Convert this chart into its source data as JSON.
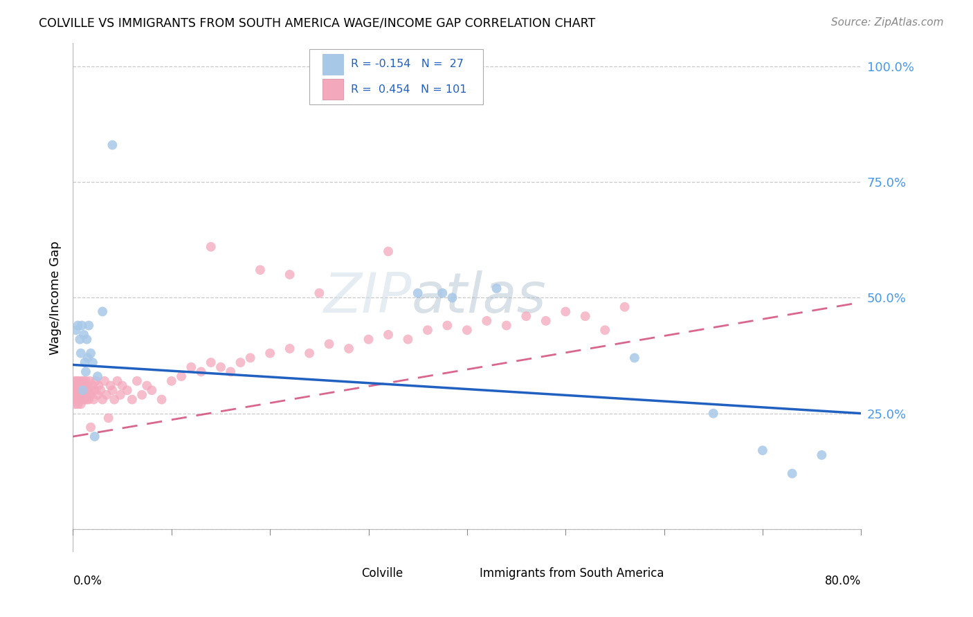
{
  "title": "COLVILLE VS IMMIGRANTS FROM SOUTH AMERICA WAGE/INCOME GAP CORRELATION CHART",
  "source": "Source: ZipAtlas.com",
  "ylabel": "Wage/Income Gap",
  "colville_color": "#a8c8e8",
  "immigrant_color": "#f4a8bc",
  "colville_line_color": "#2060c0",
  "immigrant_line_color": "#d04070",
  "ytick_vals": [
    0.0,
    0.25,
    0.5,
    0.75,
    1.0
  ],
  "ytick_labels": [
    "",
    "25.0%",
    "50.0%",
    "75.0%",
    "100.0%"
  ],
  "xlim": [
    0.0,
    0.8
  ],
  "ylim": [
    -0.05,
    1.05
  ],
  "colville_x": [
    0.003,
    0.005,
    0.007,
    0.008,
    0.009,
    0.01,
    0.011,
    0.012,
    0.013,
    0.014,
    0.015,
    0.016,
    0.018,
    0.02,
    0.022,
    0.025,
    0.03,
    0.04,
    0.35,
    0.375,
    0.385,
    0.43,
    0.57,
    0.65,
    0.7,
    0.73,
    0.76
  ],
  "colville_y": [
    0.43,
    0.44,
    0.41,
    0.38,
    0.44,
    0.3,
    0.42,
    0.36,
    0.34,
    0.41,
    0.37,
    0.44,
    0.38,
    0.36,
    0.2,
    0.33,
    0.47,
    0.83,
    0.51,
    0.51,
    0.5,
    0.52,
    0.37,
    0.25,
    0.17,
    0.12,
    0.16
  ],
  "immigrant_x": [
    0.001,
    0.001,
    0.002,
    0.002,
    0.002,
    0.003,
    0.003,
    0.003,
    0.004,
    0.004,
    0.004,
    0.005,
    0.005,
    0.005,
    0.006,
    0.006,
    0.007,
    0.007,
    0.007,
    0.008,
    0.008,
    0.008,
    0.009,
    0.009,
    0.009,
    0.01,
    0.01,
    0.01,
    0.011,
    0.011,
    0.011,
    0.012,
    0.012,
    0.013,
    0.013,
    0.014,
    0.014,
    0.015,
    0.015,
    0.016,
    0.017,
    0.018,
    0.018,
    0.019,
    0.02,
    0.021,
    0.022,
    0.023,
    0.025,
    0.026,
    0.028,
    0.03,
    0.032,
    0.034,
    0.036,
    0.038,
    0.04,
    0.042,
    0.045,
    0.048,
    0.05,
    0.055,
    0.06,
    0.065,
    0.07,
    0.075,
    0.08,
    0.09,
    0.1,
    0.11,
    0.12,
    0.13,
    0.14,
    0.15,
    0.16,
    0.17,
    0.18,
    0.2,
    0.22,
    0.24,
    0.26,
    0.28,
    0.3,
    0.32,
    0.34,
    0.36,
    0.38,
    0.4,
    0.42,
    0.44,
    0.46,
    0.48,
    0.5,
    0.52,
    0.54,
    0.56,
    0.32,
    0.14,
    0.19,
    0.22,
    0.25
  ],
  "immigrant_y": [
    0.3,
    0.28,
    0.32,
    0.3,
    0.27,
    0.29,
    0.31,
    0.28,
    0.3,
    0.32,
    0.29,
    0.27,
    0.31,
    0.29,
    0.3,
    0.32,
    0.28,
    0.3,
    0.31,
    0.29,
    0.27,
    0.31,
    0.3,
    0.28,
    0.32,
    0.29,
    0.31,
    0.3,
    0.28,
    0.32,
    0.29,
    0.31,
    0.28,
    0.3,
    0.32,
    0.29,
    0.28,
    0.31,
    0.3,
    0.28,
    0.32,
    0.29,
    0.22,
    0.3,
    0.31,
    0.28,
    0.3,
    0.32,
    0.29,
    0.31,
    0.3,
    0.28,
    0.32,
    0.29,
    0.24,
    0.31,
    0.3,
    0.28,
    0.32,
    0.29,
    0.31,
    0.3,
    0.28,
    0.32,
    0.29,
    0.31,
    0.3,
    0.28,
    0.32,
    0.33,
    0.35,
    0.34,
    0.36,
    0.35,
    0.34,
    0.36,
    0.37,
    0.38,
    0.39,
    0.38,
    0.4,
    0.39,
    0.41,
    0.42,
    0.41,
    0.43,
    0.44,
    0.43,
    0.45,
    0.44,
    0.46,
    0.45,
    0.47,
    0.46,
    0.43,
    0.48,
    0.6,
    0.61,
    0.56,
    0.55,
    0.51
  ]
}
